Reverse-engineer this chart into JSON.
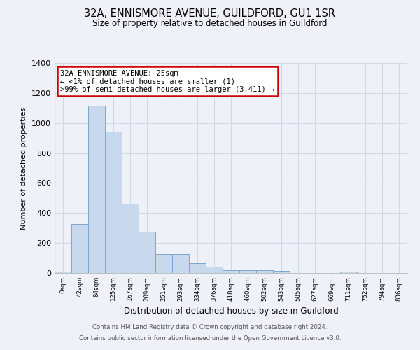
{
  "title": "32A, ENNISMORE AVENUE, GUILDFORD, GU1 1SR",
  "subtitle": "Size of property relative to detached houses in Guildford",
  "xlabel": "Distribution of detached houses by size in Guildford",
  "ylabel": "Number of detached properties",
  "footnote1": "Contains HM Land Registry data © Crown copyright and database right 2024.",
  "footnote2": "Contains public sector information licensed under the Open Government Licence v3.0.",
  "bin_labels": [
    "0sqm",
    "42sqm",
    "84sqm",
    "125sqm",
    "167sqm",
    "209sqm",
    "251sqm",
    "293sqm",
    "334sqm",
    "376sqm",
    "418sqm",
    "460sqm",
    "502sqm",
    "543sqm",
    "585sqm",
    "627sqm",
    "669sqm",
    "711sqm",
    "752sqm",
    "794sqm",
    "836sqm"
  ],
  "bar_values": [
    10,
    325,
    1115,
    945,
    462,
    275,
    128,
    128,
    65,
    42,
    18,
    20,
    18,
    12,
    0,
    0,
    0,
    10,
    0,
    0,
    0
  ],
  "bar_color": "#c8d8ed",
  "bar_edge_color": "#7aa8cc",
  "grid_color": "#d0d8e8",
  "bg_color": "#eef2f8",
  "annotation_text": "32A ENNISMORE AVENUE: 25sqm\n← <1% of detached houses are smaller (1)\n>99% of semi-detached houses are larger (3,411) →",
  "annotation_box_color": "#ffffff",
  "annotation_box_edge": "#cc0000",
  "redline_color": "#cc0000",
  "ylim": [
    0,
    1400
  ],
  "yticks": [
    0,
    200,
    400,
    600,
    800,
    1000,
    1200,
    1400
  ]
}
